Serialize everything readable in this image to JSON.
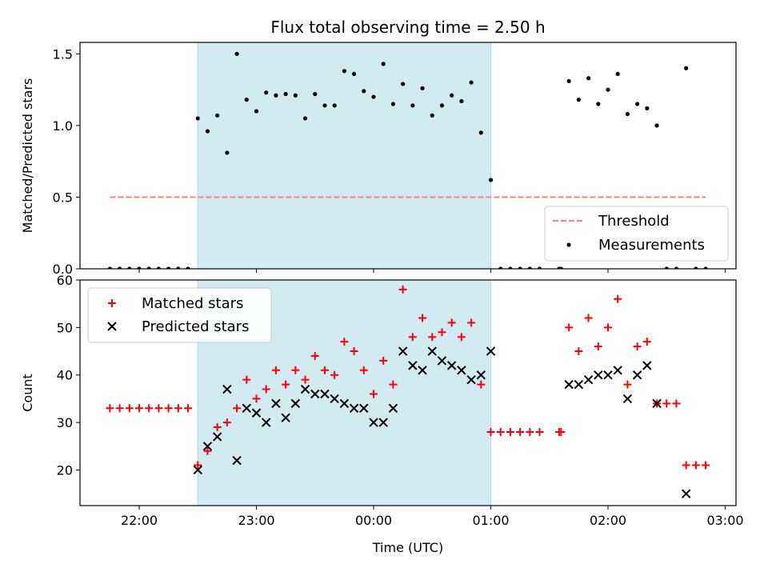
{
  "title": "Flux total observing time = 2.50 h",
  "colors": {
    "shade": "#add8e6",
    "threshold": "#ff7f7f",
    "matched": "#ff0000",
    "predicted": "#000000",
    "measurements": "#000000"
  },
  "chart_data": [
    {
      "type": "scatter",
      "ylabel": "Matched/Predicted stars",
      "ylim": [
        0,
        1.58
      ],
      "yticks": [
        "0.0",
        "0.5",
        "1.0",
        "1.5"
      ],
      "shaded_span": [
        "22:30",
        "01:00"
      ],
      "legend": {
        "placement": "lower-right",
        "entries": [
          "Threshold",
          "Measurements"
        ]
      },
      "threshold": {
        "name": "Threshold",
        "value": 0.5,
        "x_range": [
          "21:45",
          "02:50"
        ],
        "style": "dashed"
      },
      "series": [
        {
          "name": "Measurements",
          "marker": "dot",
          "points": [
            [
              "21:45",
              0
            ],
            [
              "21:50",
              0
            ],
            [
              "21:55",
              0
            ],
            [
              "22:00",
              0
            ],
            [
              "22:05",
              0
            ],
            [
              "22:10",
              0
            ],
            [
              "22:15",
              0
            ],
            [
              "22:20",
              0
            ],
            [
              "22:25",
              0
            ],
            [
              "22:30",
              1.05
            ],
            [
              "22:35",
              0.96
            ],
            [
              "22:40",
              1.07
            ],
            [
              "22:45",
              0.81
            ],
            [
              "22:50",
              1.5
            ],
            [
              "22:55",
              1.18
            ],
            [
              "23:00",
              1.1
            ],
            [
              "23:05",
              1.23
            ],
            [
              "23:10",
              1.21
            ],
            [
              "23:15",
              1.22
            ],
            [
              "23:20",
              1.21
            ],
            [
              "23:25",
              1.05
            ],
            [
              "23:30",
              1.22
            ],
            [
              "23:35",
              1.14
            ],
            [
              "23:40",
              1.14
            ],
            [
              "23:45",
              1.38
            ],
            [
              "23:50",
              1.36
            ],
            [
              "23:55",
              1.24
            ],
            [
              "00:00",
              1.2
            ],
            [
              "00:05",
              1.43
            ],
            [
              "00:10",
              1.15
            ],
            [
              "00:15",
              1.29
            ],
            [
              "00:20",
              1.14
            ],
            [
              "00:25",
              1.26
            ],
            [
              "00:30",
              1.07
            ],
            [
              "00:35",
              1.14
            ],
            [
              "00:40",
              1.21
            ],
            [
              "00:45",
              1.17
            ],
            [
              "00:50",
              1.3
            ],
            [
              "00:55",
              0.95
            ],
            [
              "01:00",
              0.62
            ],
            [
              "01:05",
              0
            ],
            [
              "01:10",
              0
            ],
            [
              "01:15",
              0
            ],
            [
              "01:20",
              0
            ],
            [
              "01:25",
              0
            ],
            [
              "01:35",
              0
            ],
            [
              "01:36",
              0
            ],
            [
              "01:40",
              1.31
            ],
            [
              "01:45",
              1.18
            ],
            [
              "01:50",
              1.33
            ],
            [
              "01:55",
              1.15
            ],
            [
              "02:00",
              1.25
            ],
            [
              "02:05",
              1.36
            ],
            [
              "02:10",
              1.08
            ],
            [
              "02:15",
              1.15
            ],
            [
              "02:20",
              1.12
            ],
            [
              "02:25",
              1.0
            ],
            [
              "02:30",
              0
            ],
            [
              "02:35",
              0
            ],
            [
              "02:40",
              1.4
            ],
            [
              "02:45",
              0
            ],
            [
              "02:50",
              0
            ]
          ]
        }
      ]
    },
    {
      "type": "scatter",
      "xlabel": "Time (UTC)",
      "ylabel": "Count",
      "ylim": [
        12.5,
        60
      ],
      "yticks": [
        "20",
        "30",
        "40",
        "50",
        "60"
      ],
      "xticks": [
        "22:00",
        "23:00",
        "00:00",
        "01:00",
        "02:00",
        "03:00"
      ],
      "shaded_span": [
        "22:30",
        "01:00"
      ],
      "legend": {
        "placement": "upper-left",
        "entries": [
          "Matched stars",
          "Predicted stars"
        ]
      },
      "series": [
        {
          "name": "Matched stars",
          "marker": "plus",
          "points": [
            [
              "21:45",
              33
            ],
            [
              "21:50",
              33
            ],
            [
              "21:55",
              33
            ],
            [
              "22:00",
              33
            ],
            [
              "22:05",
              33
            ],
            [
              "22:10",
              33
            ],
            [
              "22:15",
              33
            ],
            [
              "22:20",
              33
            ],
            [
              "22:25",
              33
            ],
            [
              "22:30",
              21
            ],
            [
              "22:35",
              24
            ],
            [
              "22:40",
              29
            ],
            [
              "22:45",
              30
            ],
            [
              "22:50",
              33
            ],
            [
              "22:55",
              39
            ],
            [
              "23:00",
              35
            ],
            [
              "23:05",
              37
            ],
            [
              "23:10",
              41
            ],
            [
              "23:15",
              38
            ],
            [
              "23:20",
              41
            ],
            [
              "23:25",
              39
            ],
            [
              "23:30",
              44
            ],
            [
              "23:35",
              41
            ],
            [
              "23:40",
              40
            ],
            [
              "23:45",
              47
            ],
            [
              "23:50",
              45
            ],
            [
              "23:55",
              41
            ],
            [
              "00:00",
              36
            ],
            [
              "00:05",
              43
            ],
            [
              "00:10",
              38
            ],
            [
              "00:15",
              58
            ],
            [
              "00:20",
              48
            ],
            [
              "00:25",
              52
            ],
            [
              "00:30",
              48
            ],
            [
              "00:35",
              49
            ],
            [
              "00:40",
              51
            ],
            [
              "00:45",
              48
            ],
            [
              "00:50",
              51
            ],
            [
              "00:55",
              38
            ],
            [
              "01:00",
              28
            ],
            [
              "01:05",
              28
            ],
            [
              "01:10",
              28
            ],
            [
              "01:15",
              28
            ],
            [
              "01:20",
              28
            ],
            [
              "01:25",
              28
            ],
            [
              "01:35",
              28
            ],
            [
              "01:36",
              28
            ],
            [
              "01:40",
              50
            ],
            [
              "01:45",
              45
            ],
            [
              "01:50",
              52
            ],
            [
              "01:55",
              46
            ],
            [
              "02:00",
              50
            ],
            [
              "02:05",
              56
            ],
            [
              "02:10",
              38
            ],
            [
              "02:15",
              46
            ],
            [
              "02:20",
              47
            ],
            [
              "02:25",
              34
            ],
            [
              "02:30",
              34
            ],
            [
              "02:35",
              34
            ],
            [
              "02:40",
              21
            ],
            [
              "02:45",
              21
            ],
            [
              "02:50",
              21
            ]
          ]
        },
        {
          "name": "Predicted stars",
          "marker": "x",
          "points": [
            [
              "22:30",
              20
            ],
            [
              "22:35",
              25
            ],
            [
              "22:40",
              27
            ],
            [
              "22:45",
              37
            ],
            [
              "22:50",
              22
            ],
            [
              "22:55",
              33
            ],
            [
              "23:00",
              32
            ],
            [
              "23:05",
              30
            ],
            [
              "23:10",
              34
            ],
            [
              "23:15",
              31
            ],
            [
              "23:20",
              34
            ],
            [
              "23:25",
              37
            ],
            [
              "23:30",
              36
            ],
            [
              "23:35",
              36
            ],
            [
              "23:40",
              35
            ],
            [
              "23:45",
              34
            ],
            [
              "23:50",
              33
            ],
            [
              "23:55",
              33
            ],
            [
              "00:00",
              30
            ],
            [
              "00:05",
              30
            ],
            [
              "00:10",
              33
            ],
            [
              "00:15",
              45
            ],
            [
              "00:20",
              42
            ],
            [
              "00:25",
              41
            ],
            [
              "00:30",
              45
            ],
            [
              "00:35",
              43
            ],
            [
              "00:40",
              42
            ],
            [
              "00:45",
              41
            ],
            [
              "00:50",
              39
            ],
            [
              "00:55",
              40
            ],
            [
              "01:00",
              45
            ],
            [
              "01:40",
              38
            ],
            [
              "01:45",
              38
            ],
            [
              "01:50",
              39
            ],
            [
              "01:55",
              40
            ],
            [
              "02:00",
              40
            ],
            [
              "02:05",
              41
            ],
            [
              "02:10",
              35
            ],
            [
              "02:15",
              40
            ],
            [
              "02:20",
              42
            ],
            [
              "02:25",
              34
            ],
            [
              "02:40",
              15
            ]
          ]
        }
      ]
    }
  ]
}
